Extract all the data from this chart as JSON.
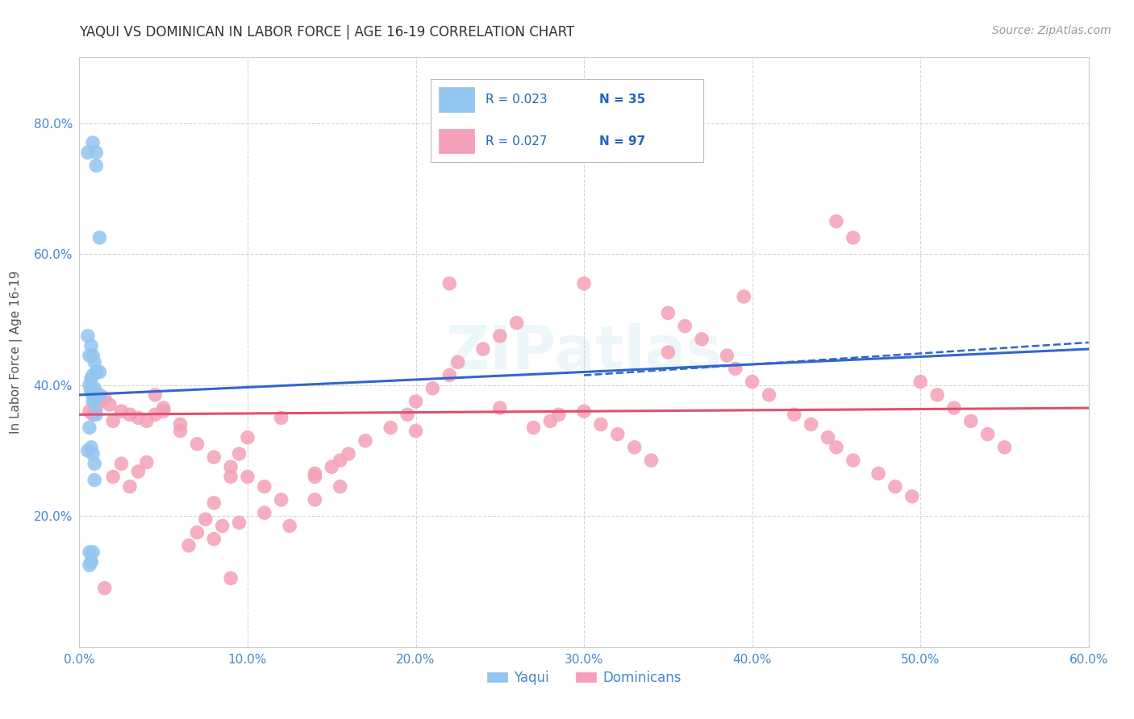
{
  "title": "YAQUI VS DOMINICAN IN LABOR FORCE | AGE 16-19 CORRELATION CHART",
  "source": "Source: ZipAtlas.com",
  "ylabel": "In Labor Force | Age 16-19",
  "xlim": [
    0.0,
    0.6
  ],
  "ylim": [
    0.0,
    0.9
  ],
  "xtick_labels": [
    "0.0%",
    "10.0%",
    "20.0%",
    "30.0%",
    "40.0%",
    "50.0%",
    "60.0%"
  ],
  "ytick_labels": [
    "",
    "20.0%",
    "40.0%",
    "60.0%",
    "80.0%"
  ],
  "yaqui_color": "#92C5F0",
  "dominican_color": "#F4A0B8",
  "yaqui_R": 0.023,
  "yaqui_N": 35,
  "dominican_R": 0.027,
  "dominican_N": 97,
  "grid_color": "#CCCCCC",
  "title_color": "#333333",
  "source_color": "#999999",
  "tick_color": "#4488CC",
  "watermark": "ZIPatlas",
  "yaqui_line_start_y": 0.385,
  "yaqui_line_end_y": 0.455,
  "yaqui_line_dash_start_y": 0.415,
  "yaqui_line_dash_end_y": 0.465,
  "dominican_line_start_y": 0.355,
  "dominican_line_end_y": 0.365,
  "yaqui_scatter_x": [
    0.005,
    0.008,
    0.01,
    0.01,
    0.012,
    0.005,
    0.007,
    0.008,
    0.009,
    0.01,
    0.006,
    0.007,
    0.008,
    0.007,
    0.008,
    0.009,
    0.01,
    0.006,
    0.007,
    0.008,
    0.009,
    0.01,
    0.012,
    0.006,
    0.007,
    0.008,
    0.009,
    0.012,
    0.005,
    0.006,
    0.007,
    0.008,
    0.009,
    0.006,
    0.007
  ],
  "yaqui_scatter_y": [
    0.755,
    0.77,
    0.755,
    0.735,
    0.625,
    0.475,
    0.46,
    0.445,
    0.435,
    0.42,
    0.445,
    0.41,
    0.415,
    0.395,
    0.385,
    0.375,
    0.355,
    0.4,
    0.39,
    0.375,
    0.395,
    0.42,
    0.385,
    0.335,
    0.305,
    0.295,
    0.28,
    0.42,
    0.3,
    0.145,
    0.13,
    0.145,
    0.255,
    0.125,
    0.13
  ],
  "dominican_scatter_x": [
    0.006,
    0.008,
    0.01,
    0.012,
    0.015,
    0.018,
    0.02,
    0.025,
    0.03,
    0.035,
    0.04,
    0.045,
    0.05,
    0.06,
    0.07,
    0.08,
    0.09,
    0.1,
    0.11,
    0.12,
    0.14,
    0.15,
    0.16,
    0.17,
    0.185,
    0.195,
    0.2,
    0.21,
    0.22,
    0.225,
    0.24,
    0.25,
    0.26,
    0.27,
    0.28,
    0.285,
    0.3,
    0.31,
    0.32,
    0.33,
    0.34,
    0.35,
    0.36,
    0.37,
    0.385,
    0.39,
    0.4,
    0.41,
    0.425,
    0.435,
    0.445,
    0.45,
    0.46,
    0.475,
    0.485,
    0.495,
    0.5,
    0.51,
    0.52,
    0.53,
    0.54,
    0.55,
    0.45,
    0.46,
    0.22,
    0.3,
    0.35,
    0.395,
    0.09,
    0.095,
    0.1,
    0.12,
    0.14,
    0.155,
    0.2,
    0.25,
    0.08,
    0.095,
    0.11,
    0.125,
    0.14,
    0.155,
    0.015,
    0.02,
    0.025,
    0.03,
    0.035,
    0.04,
    0.045,
    0.05,
    0.06,
    0.065,
    0.07,
    0.075,
    0.08,
    0.085,
    0.09
  ],
  "dominican_scatter_y": [
    0.36,
    0.355,
    0.365,
    0.375,
    0.38,
    0.37,
    0.345,
    0.36,
    0.355,
    0.35,
    0.345,
    0.355,
    0.36,
    0.33,
    0.31,
    0.29,
    0.275,
    0.26,
    0.245,
    0.225,
    0.26,
    0.275,
    0.295,
    0.315,
    0.335,
    0.355,
    0.375,
    0.395,
    0.415,
    0.435,
    0.455,
    0.475,
    0.495,
    0.335,
    0.345,
    0.355,
    0.36,
    0.34,
    0.325,
    0.305,
    0.285,
    0.51,
    0.49,
    0.47,
    0.445,
    0.425,
    0.405,
    0.385,
    0.355,
    0.34,
    0.32,
    0.305,
    0.285,
    0.265,
    0.245,
    0.23,
    0.405,
    0.385,
    0.365,
    0.345,
    0.325,
    0.305,
    0.65,
    0.625,
    0.555,
    0.555,
    0.45,
    0.535,
    0.26,
    0.295,
    0.32,
    0.35,
    0.265,
    0.285,
    0.33,
    0.365,
    0.22,
    0.19,
    0.205,
    0.185,
    0.225,
    0.245,
    0.09,
    0.26,
    0.28,
    0.245,
    0.268,
    0.282,
    0.385,
    0.365,
    0.34,
    0.155,
    0.175,
    0.195,
    0.165,
    0.185,
    0.105
  ]
}
